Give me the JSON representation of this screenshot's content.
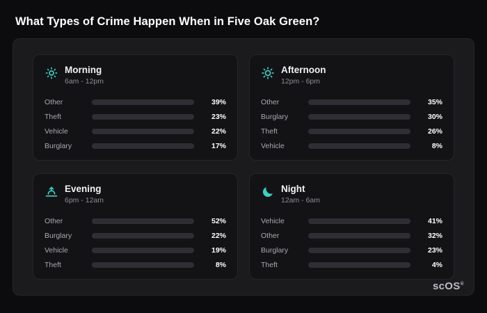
{
  "page": {
    "title": "What Types of Crime Happen When in Five Oak Green?"
  },
  "brand": {
    "name": "scOS",
    "registered_mark": "®"
  },
  "colors": {
    "Other": "#6b7b94",
    "Theft": "#a855f7",
    "Vehicle": "#3b82f6",
    "Burglary": "#e8832b",
    "icon_accent": "#3ecfc4",
    "track": "#2e2e34",
    "panel_bg": "#1b1b1e",
    "card_bg": "#131316",
    "page_bg": "#0c0c0e"
  },
  "chart_data": [
    {
      "type": "bar",
      "title": "Morning",
      "subtitle": "6am - 12pm",
      "icon": "sun-rays-icon",
      "categories": [
        "Other",
        "Theft",
        "Vehicle",
        "Burglary"
      ],
      "values": [
        39,
        23,
        22,
        17
      ],
      "unit": "%",
      "xlim": [
        0,
        100
      ],
      "orientation": "horizontal"
    },
    {
      "type": "bar",
      "title": "Afternoon",
      "subtitle": "12pm - 6pm",
      "icon": "sun-icon",
      "categories": [
        "Other",
        "Burglary",
        "Theft",
        "Vehicle"
      ],
      "values": [
        35,
        30,
        26,
        8
      ],
      "unit": "%",
      "xlim": [
        0,
        100
      ],
      "orientation": "horizontal"
    },
    {
      "type": "bar",
      "title": "Evening",
      "subtitle": "6pm - 12am",
      "icon": "sunset-icon",
      "categories": [
        "Other",
        "Burglary",
        "Vehicle",
        "Theft"
      ],
      "values": [
        52,
        22,
        19,
        8
      ],
      "unit": "%",
      "xlim": [
        0,
        100
      ],
      "orientation": "horizontal"
    },
    {
      "type": "bar",
      "title": "Night",
      "subtitle": "12am - 6am",
      "icon": "moon-icon",
      "categories": [
        "Vehicle",
        "Other",
        "Burglary",
        "Theft"
      ],
      "values": [
        41,
        32,
        23,
        4
      ],
      "unit": "%",
      "xlim": [
        0,
        100
      ],
      "orientation": "horizontal"
    }
  ]
}
